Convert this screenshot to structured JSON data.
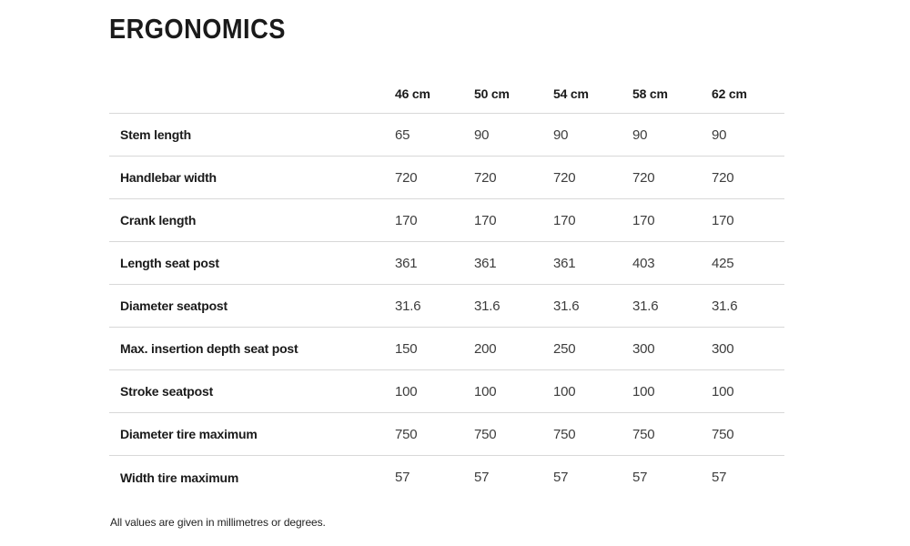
{
  "page": {
    "title": "ERGONOMICS",
    "footnote": "All values are given in millimetres or degrees."
  },
  "table": {
    "columns": [
      "46 cm",
      "50 cm",
      "54 cm",
      "58 cm",
      "62 cm"
    ],
    "rows": [
      {
        "label": "Stem length",
        "values": [
          "65",
          "90",
          "90",
          "90",
          "90"
        ]
      },
      {
        "label": "Handlebar width",
        "values": [
          "720",
          "720",
          "720",
          "720",
          "720"
        ]
      },
      {
        "label": "Crank length",
        "values": [
          "170",
          "170",
          "170",
          "170",
          "170"
        ]
      },
      {
        "label": "Length seat post",
        "values": [
          "361",
          "361",
          "361",
          "403",
          "425"
        ]
      },
      {
        "label": "Diameter seatpost",
        "values": [
          "31.6",
          "31.6",
          "31.6",
          "31.6",
          "31.6"
        ]
      },
      {
        "label": "Max. insertion depth seat post",
        "values": [
          "150",
          "200",
          "250",
          "300",
          "300"
        ]
      },
      {
        "label": "Stroke seatpost",
        "values": [
          "100",
          "100",
          "100",
          "100",
          "100"
        ]
      },
      {
        "label": "Diameter tire maximum",
        "values": [
          "750",
          "750",
          "750",
          "750",
          "750"
        ]
      },
      {
        "label": "Width tire maximum",
        "values": [
          "57",
          "57",
          "57",
          "57",
          "57"
        ]
      }
    ]
  },
  "colors": {
    "background": "#ffffff",
    "text_primary": "#1a1a1a",
    "text_value": "#3d3d3d",
    "divider": "#d8d8d8"
  }
}
